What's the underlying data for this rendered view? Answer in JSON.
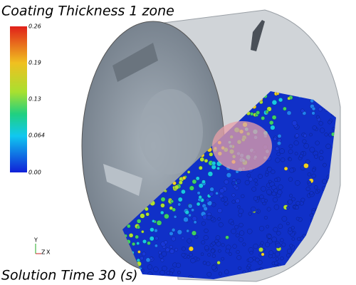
{
  "title": "Coating Thickness 1 zone",
  "colorbar": {
    "labels": [
      "0.26",
      "0.19",
      "0.13",
      "0.064",
      "0.00"
    ]
  },
  "triad": {
    "y": "Y",
    "z": "Z",
    "x": "X"
  },
  "footer": "Solution Time 30 (s)"
}
